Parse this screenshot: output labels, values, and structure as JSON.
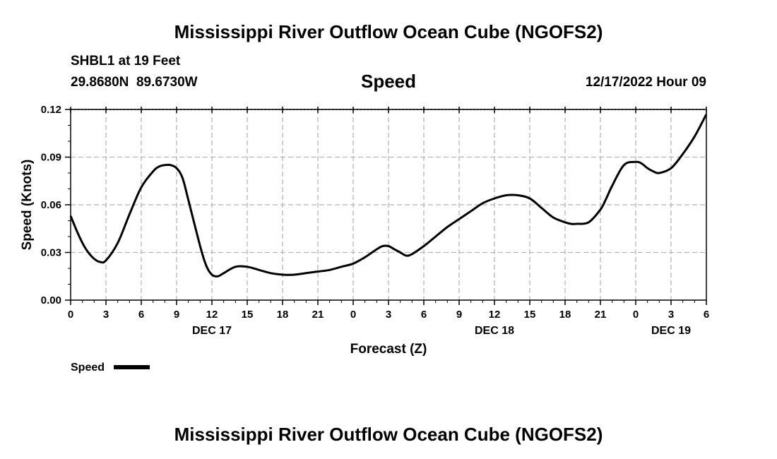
{
  "header": {
    "title": "Mississippi River Outflow Ocean Cube (NGOFS2)",
    "station": "SHBL1 at 19 Feet",
    "coords": "29.8680N  89.6730W",
    "plot_title": "Speed",
    "datetime": "12/17/2022 Hour 09"
  },
  "footer": {
    "title": "Mississippi River Outflow Ocean Cube (NGOFS2)"
  },
  "chart_data": {
    "type": "line",
    "title": "Speed",
    "xlabel": "Forecast (Z)",
    "ylabel": "Speed (Knots)",
    "xlim": [
      0,
      54
    ],
    "ylim": [
      0,
      0.12
    ],
    "y_ticks": [
      "0.00",
      "0.03",
      "0.06",
      "0.09",
      "0.12"
    ],
    "x_tick_labels": [
      "0",
      "3",
      "6",
      "9",
      "12",
      "15",
      "18",
      "21",
      "0",
      "3",
      "6",
      "9",
      "12",
      "15",
      "18",
      "21",
      "0",
      "3",
      "6"
    ],
    "day_labels": [
      {
        "label": "DEC 17",
        "hour": 12
      },
      {
        "label": "DEC 18",
        "hour": 36
      },
      {
        "label": "DEC 19",
        "hour": 51
      }
    ],
    "grid": true,
    "legend": "Speed",
    "series": [
      {
        "name": "Speed",
        "x": [
          0,
          0.5,
          1,
          1.5,
          2,
          2.5,
          3,
          4,
          5,
          6,
          7,
          7.5,
          8,
          8.5,
          9,
          9.5,
          10,
          11,
          11.5,
          12,
          12.5,
          13,
          14,
          15,
          16,
          17,
          18,
          19,
          20,
          21,
          22,
          23,
          24,
          25,
          26,
          26.5,
          27,
          27.5,
          28,
          28.5,
          29,
          30,
          31,
          32,
          33,
          34,
          35,
          36,
          37,
          38,
          39,
          40,
          41,
          42,
          42.5,
          43,
          44,
          45,
          45.5,
          46,
          47,
          48,
          48.5,
          49,
          49.5,
          50,
          51,
          52,
          53,
          54
        ],
        "values": [
          0.053,
          0.044,
          0.036,
          0.03,
          0.026,
          0.024,
          0.025,
          0.036,
          0.054,
          0.071,
          0.081,
          0.084,
          0.085,
          0.085,
          0.083,
          0.077,
          0.063,
          0.034,
          0.022,
          0.016,
          0.015,
          0.017,
          0.021,
          0.021,
          0.019,
          0.017,
          0.016,
          0.016,
          0.017,
          0.018,
          0.019,
          0.021,
          0.023,
          0.027,
          0.032,
          0.034,
          0.034,
          0.032,
          0.03,
          0.028,
          0.029,
          0.034,
          0.04,
          0.046,
          0.051,
          0.056,
          0.061,
          0.064,
          0.066,
          0.066,
          0.064,
          0.058,
          0.052,
          0.049,
          0.048,
          0.048,
          0.049,
          0.057,
          0.064,
          0.072,
          0.085,
          0.087,
          0.086,
          0.083,
          0.081,
          0.08,
          0.083,
          0.092,
          0.103,
          0.117
        ]
      }
    ]
  }
}
